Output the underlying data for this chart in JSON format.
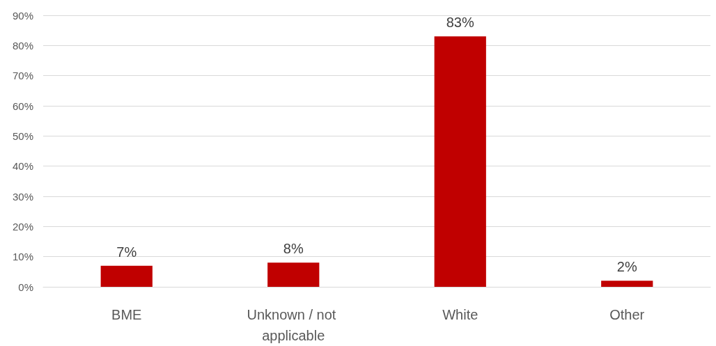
{
  "chart_data": {
    "type": "bar",
    "categories": [
      "BME",
      "Unknown / not applicable",
      "White",
      "Other"
    ],
    "series": [
      {
        "color": "#c00000",
        "values": [
          7,
          8,
          83,
          2
        ],
        "value_labels": [
          "7%",
          "8%",
          "83%",
          "2%"
        ]
      }
    ],
    "ylim": [
      0,
      90
    ],
    "yticks": [
      {
        "value": 0,
        "label": "0%"
      },
      {
        "value": 10,
        "label": "10%"
      },
      {
        "value": 20,
        "label": "20%"
      },
      {
        "value": 30,
        "label": "30%"
      },
      {
        "value": 40,
        "label": "40%"
      },
      {
        "value": 50,
        "label": "50%"
      },
      {
        "value": 60,
        "label": "60%"
      },
      {
        "value": 70,
        "label": "70%"
      },
      {
        "value": 80,
        "label": "80%"
      },
      {
        "value": 90,
        "label": "90%"
      }
    ],
    "grid": "y"
  }
}
